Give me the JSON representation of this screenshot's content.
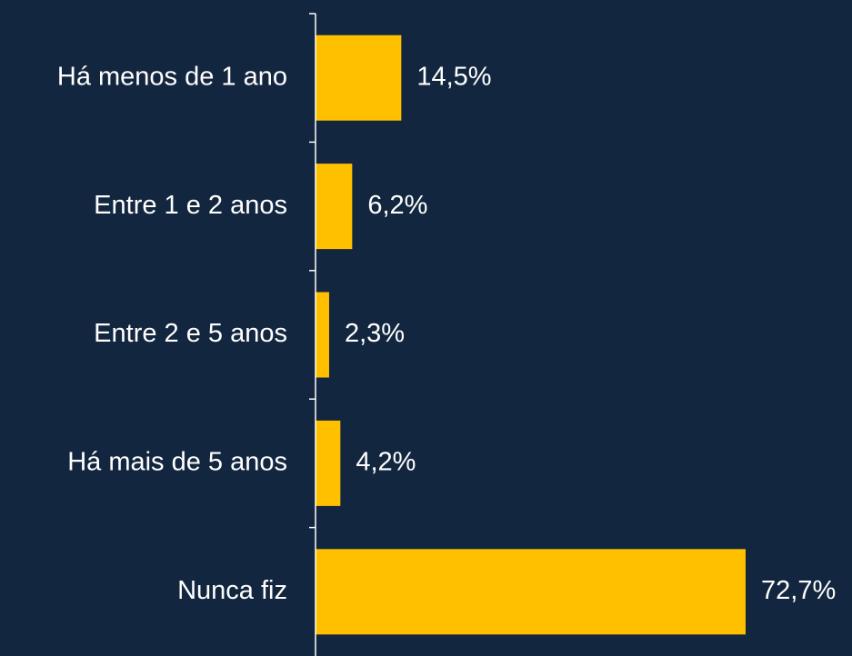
{
  "chart_data": {
    "type": "bar",
    "orientation": "horizontal",
    "categories": [
      "Há menos de 1 ano",
      "Entre 1 e 2 anos",
      "Entre 2 e 5 anos",
      "Há mais de 5 anos",
      "Nunca fiz"
    ],
    "values": [
      14.5,
      6.2,
      2.3,
      4.2,
      72.7
    ],
    "value_labels": [
      "14,5%",
      "6,2%",
      "2,3%",
      "4,2%",
      "72,7%"
    ],
    "color": "#ffc000"
  }
}
